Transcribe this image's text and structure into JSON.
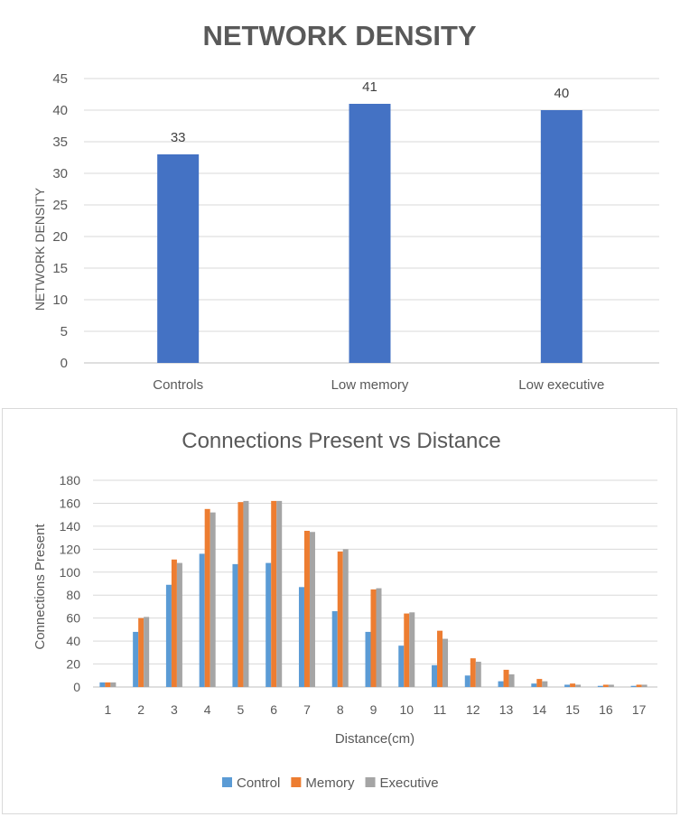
{
  "chart_data": [
    {
      "type": "bar",
      "title": "NETWORK DENSITY",
      "xlabel": "",
      "ylabel": "NETWORK DENSITY",
      "categories": [
        "Controls",
        "Low memory",
        "Low executive"
      ],
      "values": [
        33,
        41,
        40
      ],
      "ylim": [
        0,
        45
      ],
      "yticks": [
        0,
        5,
        10,
        15,
        20,
        25,
        30,
        35,
        40,
        45
      ],
      "data_labels": true,
      "grid": true,
      "color": "#4472c4"
    },
    {
      "type": "bar",
      "title": "Connections Present vs Distance",
      "xlabel": "Distance(cm)",
      "ylabel": "Connections Present",
      "categories": [
        "1",
        "2",
        "3",
        "4",
        "5",
        "6",
        "7",
        "8",
        "9",
        "10",
        "11",
        "12",
        "13",
        "14",
        "15",
        "16",
        "17"
      ],
      "series": [
        {
          "name": "Control",
          "color": "#5b9bd5",
          "values": [
            4,
            48,
            89,
            116,
            107,
            108,
            87,
            66,
            48,
            36,
            19,
            10,
            5,
            3,
            2,
            1,
            1
          ]
        },
        {
          "name": "Memory",
          "color": "#ed7d31",
          "values": [
            4,
            60,
            111,
            155,
            161,
            162,
            136,
            118,
            85,
            64,
            49,
            25,
            15,
            7,
            3,
            2,
            2
          ]
        },
        {
          "name": "Executive",
          "color": "#a5a5a5",
          "values": [
            4,
            61,
            108,
            152,
            162,
            162,
            135,
            120,
            86,
            65,
            42,
            22,
            11,
            5,
            2,
            2,
            2
          ]
        }
      ],
      "ylim": [
        0,
        180
      ],
      "yticks": [
        0,
        20,
        40,
        60,
        80,
        100,
        120,
        140,
        160,
        180
      ],
      "legend": "bottom",
      "grid": true
    }
  ]
}
